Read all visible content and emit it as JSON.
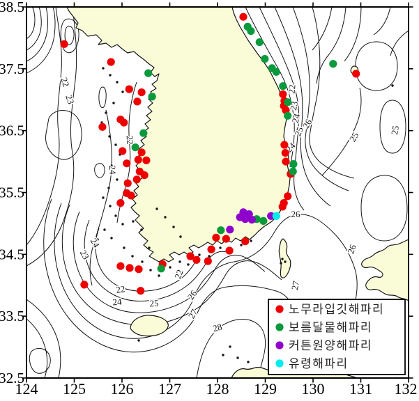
{
  "figure": {
    "land_color": "#fafcd8",
    "sea_color": "#ffffff",
    "line_color": "#141414"
  },
  "axes": {
    "x_tick_labels": [
      "124",
      "125",
      "126",
      "127",
      "128",
      "129",
      "130",
      "131",
      "132"
    ],
    "y_tick_labels": [
      "38.5",
      "37.5",
      "36.5",
      "35.5",
      "34.5",
      "33.5",
      "32.5"
    ],
    "x_range": [
      124,
      132
    ],
    "y_range": [
      32.5,
      38.5
    ]
  },
  "legend": {
    "items": [
      {
        "label": "노무라입깃해파리",
        "color": "#ee0000",
        "marker": "red-dot"
      },
      {
        "label": "보름달물해파리",
        "color": "#0a9a3c",
        "marker": "green-dot"
      },
      {
        "label": "커튼원양해파리",
        "color": "#9000cc",
        "marker": "purple-dot"
      },
      {
        "label": "유령해파리",
        "color": "#00eded",
        "marker": "cyan-dot"
      }
    ]
  },
  "chart_data": {
    "type": "scatter",
    "title": "",
    "xlabel": "",
    "ylabel": "",
    "x_range": [
      124,
      132
    ],
    "y_range": [
      32.5,
      38.5
    ],
    "grid": false,
    "legend_position": "bottom-right",
    "series": [
      {
        "name": "노무라입깃해파리",
        "color": "#ee0000",
        "points": [
          [
            124.79,
            37.9
          ],
          [
            125.77,
            37.61
          ],
          [
            126.15,
            37.17
          ],
          [
            126.41,
            37.12
          ],
          [
            126.32,
            36.97
          ],
          [
            125.97,
            36.68
          ],
          [
            126.04,
            36.63
          ],
          [
            125.59,
            36.56
          ],
          [
            126.01,
            36.17
          ],
          [
            126.41,
            36.15
          ],
          [
            126.34,
            36.03
          ],
          [
            126.51,
            36.02
          ],
          [
            126.1,
            35.97
          ],
          [
            126.37,
            35.84
          ],
          [
            126.47,
            35.78
          ],
          [
            126.31,
            35.71
          ],
          [
            126.12,
            35.65
          ],
          [
            126.1,
            35.49
          ],
          [
            126.19,
            35.45
          ],
          [
            125.97,
            35.33
          ],
          [
            125.21,
            34.01
          ],
          [
            125.97,
            34.31
          ],
          [
            126.16,
            34.28
          ],
          [
            126.35,
            34.26
          ],
          [
            126.39,
            33.91
          ],
          [
            126.85,
            34.34
          ],
          [
            127.43,
            34.47
          ],
          [
            127.56,
            34.41
          ],
          [
            127.8,
            34.39
          ],
          [
            127.97,
            34.77
          ],
          [
            128.18,
            34.75
          ],
          [
            128.58,
            34.71
          ],
          [
            127.87,
            34.58
          ],
          [
            128.25,
            34.56
          ],
          [
            129.36,
            35.27
          ],
          [
            128.54,
            38.34
          ],
          [
            129.37,
            37.09
          ],
          [
            129.4,
            36.98
          ],
          [
            129.39,
            36.9
          ],
          [
            129.43,
            36.83
          ],
          [
            129.4,
            36.27
          ],
          [
            129.42,
            36.14
          ],
          [
            129.43,
            36.0
          ],
          [
            129.53,
            35.8
          ],
          [
            129.47,
            35.44
          ],
          [
            129.39,
            35.33
          ],
          [
            130.9,
            37.42
          ]
        ]
      },
      {
        "name": "보름달물해파리",
        "color": "#0a9a3c",
        "points": [
          [
            126.55,
            37.43
          ],
          [
            126.63,
            37.05
          ],
          [
            126.45,
            36.46
          ],
          [
            126.28,
            36.23
          ],
          [
            126.82,
            34.27
          ],
          [
            128.07,
            34.89
          ],
          [
            128.82,
            35.07
          ],
          [
            128.96,
            35.04
          ],
          [
            128.63,
            38.18
          ],
          [
            128.7,
            38.11
          ],
          [
            128.88,
            37.93
          ],
          [
            128.99,
            37.66
          ],
          [
            129.14,
            37.51
          ],
          [
            129.23,
            37.45
          ],
          [
            129.37,
            37.22
          ],
          [
            129.47,
            36.96
          ],
          [
            129.47,
            36.74
          ],
          [
            129.59,
            35.96
          ],
          [
            129.58,
            35.84
          ],
          [
            130.42,
            37.58
          ]
        ]
      },
      {
        "name": "커튼원양해파리",
        "color": "#9000cc",
        "points": [
          [
            128.54,
            35.18
          ],
          [
            128.66,
            35.15
          ],
          [
            128.47,
            35.1
          ],
          [
            128.58,
            35.07
          ],
          [
            128.72,
            35.06
          ],
          [
            128.26,
            34.9
          ],
          [
            129.12,
            35.12
          ]
        ]
      },
      {
        "name": "유령해파리",
        "color": "#00eded",
        "points": [
          [
            129.23,
            35.12
          ]
        ]
      }
    ],
    "contour_labels": [
      {
        "value": "22",
        "x": 93,
        "y": 118,
        "rot": 72
      },
      {
        "value": "23",
        "x": 100,
        "y": 143,
        "rot": 72
      },
      {
        "value": "22",
        "x": 186,
        "y": 201,
        "rot": 85
      },
      {
        "value": "24",
        "x": 161,
        "y": 244,
        "rot": 85
      },
      {
        "value": "24",
        "x": 136,
        "y": 349,
        "rot": 60
      },
      {
        "value": "23",
        "x": 121,
        "y": 366,
        "rot": 60
      },
      {
        "value": "22",
        "x": 173,
        "y": 416,
        "rot": -8
      },
      {
        "value": "24",
        "x": 168,
        "y": 434,
        "rot": -5
      },
      {
        "value": "25",
        "x": 221,
        "y": 436,
        "rot": -3
      },
      {
        "value": "26",
        "x": 276,
        "y": 424,
        "rot": -55
      },
      {
        "value": "27",
        "x": 277,
        "y": 451,
        "rot": -60
      },
      {
        "value": "28",
        "x": 312,
        "y": 471,
        "rot": -15
      },
      {
        "value": "22",
        "x": 257,
        "y": 394,
        "rot": -70
      },
      {
        "value": "26",
        "x": 424,
        "y": 308,
        "rot": 0
      },
      {
        "value": "26",
        "x": 505,
        "y": 358,
        "rot": -70
      },
      {
        "value": "27",
        "x": 424,
        "y": 410,
        "rot": -80
      },
      {
        "value": "22",
        "x": 419,
        "y": 128,
        "rot": -85
      },
      {
        "value": "23",
        "x": 422,
        "y": 152,
        "rot": -80
      },
      {
        "value": "24",
        "x": 425,
        "y": 170,
        "rot": -75
      },
      {
        "value": "25",
        "x": 429,
        "y": 189,
        "rot": -68
      },
      {
        "value": "26",
        "x": 441,
        "y": 178,
        "rot": -60
      },
      {
        "value": "24",
        "x": 417,
        "y": 212,
        "rot": -48
      },
      {
        "value": "25",
        "x": 508,
        "y": 197,
        "rot": -60
      },
      {
        "value": "25",
        "x": 567,
        "y": 187,
        "rot": -80
      }
    ]
  }
}
